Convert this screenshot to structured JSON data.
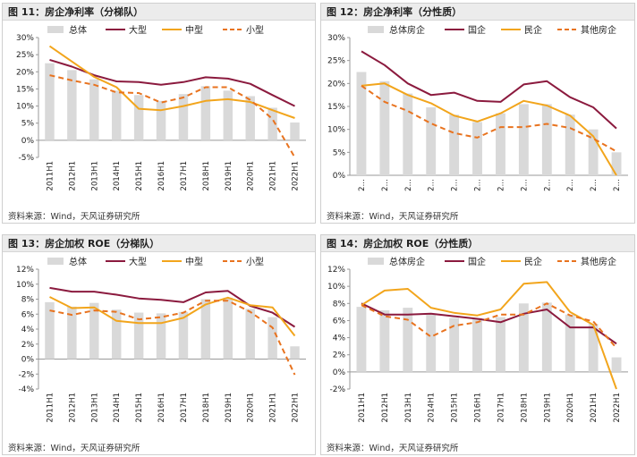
{
  "panels": [
    {
      "title": "图 11：房企净利率（分梯队）",
      "source": "资料来源：Wind，天风证券研究所"
    },
    {
      "title": "图 12：房企净利率（分性质）",
      "source": "资料来源：Wind，天风证券研究所"
    },
    {
      "title": "图 13：房企加权 ROE（分梯队）",
      "source": "资料来源：Wind，天风证券研究所"
    },
    {
      "title": "图 14：房企加权 ROE（分性质）",
      "source": "资料来源：Wind，天风证券研究所"
    }
  ],
  "colors": {
    "total": "#d9d9d9",
    "line1": "#8b1a3e",
    "line2": "#f2a51c",
    "line3": "#e8731f"
  },
  "chart_data": [
    {
      "type": "bar+line",
      "title": "房企净利率（分梯队）",
      "categories": [
        "2011H1",
        "2012H1",
        "2013H1",
        "2014H1",
        "2015H1",
        "2016H1",
        "2017H1",
        "2018H1",
        "2019H1",
        "2020H1",
        "2021H1",
        "2022H1"
      ],
      "ylim": [
        -5,
        30
      ],
      "yticks": [
        -5,
        0,
        5,
        10,
        15,
        20,
        25,
        30
      ],
      "unit": "%",
      "series": [
        {
          "name": "总体",
          "kind": "bar",
          "values": [
            22.5,
            20.5,
            17.8,
            14.5,
            13.2,
            11.5,
            13.5,
            15.8,
            14.5,
            12.9,
            9.5,
            5.2
          ]
        },
        {
          "name": "大型",
          "kind": "line",
          "values": [
            23.5,
            21.5,
            19.0,
            17.2,
            17.0,
            16.2,
            17.0,
            18.4,
            18.0,
            16.5,
            13.2,
            10.0
          ]
        },
        {
          "name": "中型",
          "kind": "line",
          "values": [
            27.5,
            23.0,
            18.5,
            15.5,
            9.2,
            8.8,
            10.0,
            11.5,
            12.0,
            11.2,
            8.8,
            6.5
          ]
        },
        {
          "name": "小型",
          "kind": "dashed",
          "values": [
            19.0,
            17.5,
            16.2,
            14.0,
            13.8,
            11.0,
            12.5,
            15.5,
            15.5,
            11.8,
            6.2,
            -5.0
          ]
        }
      ]
    },
    {
      "type": "bar+line",
      "title": "房企净利率（分性质）",
      "categories": [
        "2011H1",
        "2012H1",
        "2013H1",
        "2014H1",
        "2015H1",
        "2016H1",
        "2017H1",
        "2018H1",
        "2019H1",
        "2020H1",
        "2021H1",
        "2022H1"
      ],
      "tick_label_display": "2…",
      "ylim": [
        0,
        30
      ],
      "yticks": [
        0,
        5,
        10,
        15,
        20,
        25,
        30
      ],
      "unit": "%",
      "series": [
        {
          "name": "总体房企",
          "kind": "bar",
          "values": [
            22.5,
            20.5,
            17.8,
            14.8,
            13.2,
            11.6,
            13.5,
            15.5,
            15.5,
            13.2,
            10.0,
            5.0
          ]
        },
        {
          "name": "国企",
          "kind": "line",
          "values": [
            27.0,
            24.0,
            20.0,
            17.5,
            18.0,
            16.2,
            16.0,
            19.8,
            20.5,
            17.0,
            14.8,
            10.2
          ]
        },
        {
          "name": "民企",
          "kind": "line",
          "values": [
            19.5,
            20.0,
            17.5,
            15.7,
            13.0,
            11.7,
            13.5,
            16.2,
            15.2,
            13.0,
            8.5,
            0.0
          ]
        },
        {
          "name": "其他房企",
          "kind": "dashed",
          "values": [
            19.5,
            16.0,
            14.0,
            11.3,
            9.2,
            8.2,
            10.5,
            10.5,
            11.2,
            10.3,
            8.0,
            5.2
          ]
        }
      ]
    },
    {
      "type": "bar+line",
      "title": "房企加权 ROE（分梯队）",
      "categories": [
        "2011H1",
        "2012H1",
        "2013H1",
        "2014H1",
        "2015H1",
        "2016H1",
        "2017H1",
        "2018H1",
        "2019H1",
        "2020H1",
        "2021H1",
        "2022H1"
      ],
      "ylim": [
        -4,
        12
      ],
      "yticks": [
        -4,
        -2,
        0,
        2,
        4,
        6,
        8,
        10,
        12
      ],
      "unit": "%",
      "series": [
        {
          "name": "总体",
          "kind": "bar",
          "values": [
            7.6,
            7.0,
            7.5,
            6.6,
            6.2,
            6.1,
            6.3,
            8.0,
            8.2,
            6.7,
            5.6,
            1.7
          ]
        },
        {
          "name": "大型",
          "kind": "line",
          "values": [
            9.5,
            9.0,
            9.0,
            8.6,
            8.1,
            7.9,
            7.6,
            8.9,
            9.1,
            7.1,
            6.2,
            4.3
          ]
        },
        {
          "name": "中型",
          "kind": "line",
          "values": [
            8.3,
            6.8,
            6.9,
            5.1,
            4.8,
            4.8,
            5.5,
            7.3,
            8.2,
            7.2,
            6.9,
            3.1
          ]
        },
        {
          "name": "小型",
          "kind": "dashed",
          "values": [
            6.5,
            5.9,
            6.5,
            6.3,
            5.3,
            5.6,
            6.2,
            7.8,
            7.8,
            6.3,
            4.2,
            -2.1
          ]
        }
      ]
    },
    {
      "type": "bar+line",
      "title": "房企加权 ROE（分性质）",
      "categories": [
        "2011H1",
        "2012H1",
        "2013H1",
        "2014H1",
        "2015H1",
        "2016H1",
        "2017H1",
        "2018H1",
        "2019H1",
        "2020H1",
        "2021H1",
        "2022H1"
      ],
      "ylim": [
        -2,
        12
      ],
      "yticks": [
        -2,
        0,
        2,
        4,
        6,
        8,
        10,
        12
      ],
      "unit": "%",
      "series": [
        {
          "name": "总体房企",
          "kind": "bar",
          "values": [
            7.6,
            7.2,
            7.5,
            6.7,
            6.3,
            6.3,
            6.4,
            8.0,
            8.1,
            6.7,
            5.6,
            1.7
          ]
        },
        {
          "name": "国企",
          "kind": "line",
          "values": [
            8.0,
            6.7,
            6.7,
            6.8,
            6.5,
            6.2,
            5.8,
            6.8,
            7.3,
            5.2,
            5.2,
            3.3
          ]
        },
        {
          "name": "民企",
          "kind": "line",
          "values": [
            7.8,
            9.5,
            9.7,
            7.5,
            6.9,
            6.6,
            7.3,
            10.3,
            10.5,
            7.0,
            5.5,
            -2.0
          ]
        },
        {
          "name": "其他房企",
          "kind": "dashed",
          "values": [
            7.8,
            6.5,
            6.1,
            4.1,
            5.4,
            5.8,
            6.7,
            6.7,
            8.0,
            6.6,
            5.9,
            2.8
          ]
        }
      ]
    }
  ]
}
